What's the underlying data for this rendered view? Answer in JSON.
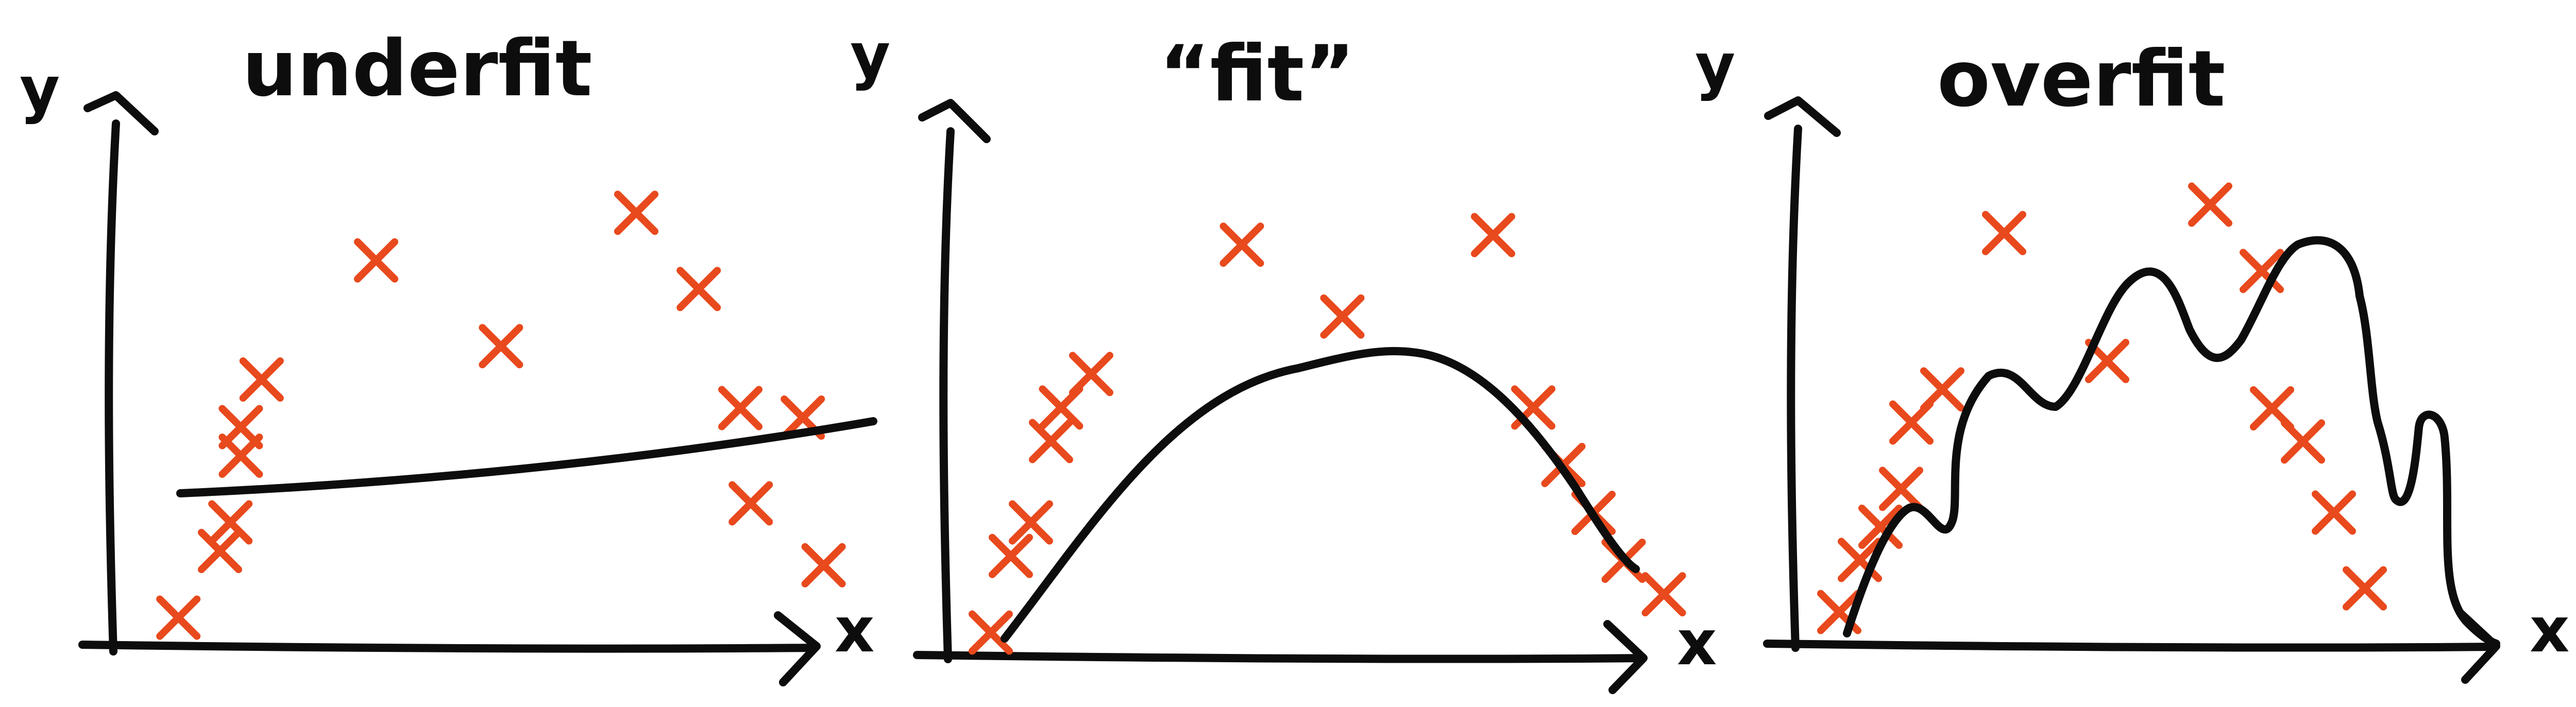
{
  "colors": {
    "ink": "#0d0d0d",
    "points": "#e8491d"
  },
  "panels": [
    {
      "title": "underfit",
      "ylabel": "y",
      "xlabel": "x",
      "points": [
        [
          0.06,
          0.06
        ],
        [
          0.1,
          0.2
        ],
        [
          0.11,
          0.26
        ],
        [
          0.12,
          0.4
        ],
        [
          0.12,
          0.46
        ],
        [
          0.14,
          0.56
        ],
        [
          0.25,
          0.81
        ],
        [
          0.37,
          0.63
        ],
        [
          0.5,
          0.91
        ],
        [
          0.56,
          0.75
        ],
        [
          0.6,
          0.5
        ],
        [
          0.61,
          0.3
        ],
        [
          0.66,
          0.48
        ],
        [
          0.68,
          0.17
        ]
      ],
      "fit": "line"
    },
    {
      "title": "“fit”",
      "ylabel": "y",
      "xlabel": "x",
      "points": [
        [
          0.04,
          0.05
        ],
        [
          0.06,
          0.21
        ],
        [
          0.08,
          0.28
        ],
        [
          0.1,
          0.45
        ],
        [
          0.11,
          0.52
        ],
        [
          0.14,
          0.59
        ],
        [
          0.29,
          0.86
        ],
        [
          0.39,
          0.71
        ],
        [
          0.54,
          0.88
        ],
        [
          0.58,
          0.52
        ],
        [
          0.61,
          0.4
        ],
        [
          0.64,
          0.3
        ],
        [
          0.67,
          0.2
        ],
        [
          0.71,
          0.13
        ]
      ],
      "fit": "smooth"
    },
    {
      "title": "overfit",
      "ylabel": "y",
      "xlabel": "x",
      "points": [
        [
          0.04,
          0.07
        ],
        [
          0.06,
          0.18
        ],
        [
          0.08,
          0.25
        ],
        [
          0.1,
          0.33
        ],
        [
          0.11,
          0.47
        ],
        [
          0.14,
          0.54
        ],
        [
          0.2,
          0.87
        ],
        [
          0.3,
          0.6
        ],
        [
          0.4,
          0.93
        ],
        [
          0.45,
          0.79
        ],
        [
          0.46,
          0.5
        ],
        [
          0.49,
          0.43
        ],
        [
          0.52,
          0.28
        ],
        [
          0.55,
          0.12
        ]
      ],
      "fit": "wiggly"
    }
  ]
}
